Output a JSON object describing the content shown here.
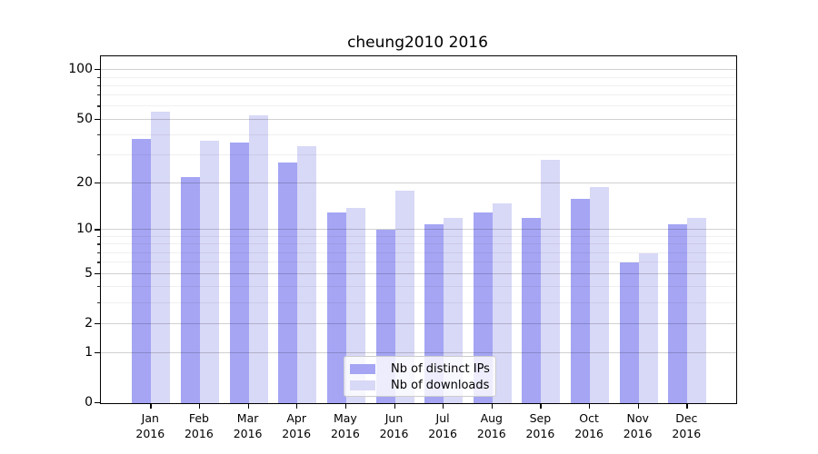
{
  "title": "cheung2010 2016",
  "legend": {
    "items": [
      {
        "label": "Nb of distinct IPs",
        "color": "#a5a5f4"
      },
      {
        "label": "Nb of downloads",
        "color": "#d8d8f7"
      }
    ]
  },
  "axes": {
    "y_tick_labels": [
      "0",
      "1",
      "2",
      "5",
      "10",
      "20",
      "50",
      "100"
    ],
    "x_tick_labels": [
      "Jan 2016",
      "Feb 2016",
      "Mar 2016",
      "Apr 2016",
      "May 2016",
      "Jun 2016",
      "Jul 2016",
      "Aug 2016",
      "Sep 2016",
      "Oct 2016",
      "Nov 2016",
      "Dec 2016"
    ]
  },
  "chart_data": {
    "type": "bar",
    "title": "cheung2010 2016",
    "categories": [
      "Jan 2016",
      "Feb 2016",
      "Mar 2016",
      "Apr 2016",
      "May 2016",
      "Jun 2016",
      "Jul 2016",
      "Aug 2016",
      "Sep 2016",
      "Oct 2016",
      "Nov 2016",
      "Dec 2016"
    ],
    "series": [
      {
        "name": "Nb of distinct IPs",
        "color": "#a5a5f4",
        "values": [
          38,
          22,
          36,
          27,
          13,
          10,
          11,
          13,
          12,
          16,
          6,
          11
        ]
      },
      {
        "name": "Nb of downloads",
        "color": "#d8d8f7",
        "values": [
          56,
          37,
          53,
          34,
          14,
          18,
          12,
          15,
          28,
          19,
          7,
          12
        ]
      }
    ],
    "xlabel": "",
    "ylabel": "",
    "yscale": "log1p",
    "y_ticks": [
      0,
      1,
      2,
      5,
      10,
      20,
      50,
      100
    ],
    "y_minor_ticks": [
      3,
      4,
      6,
      7,
      8,
      9,
      30,
      40,
      60,
      70,
      80,
      90
    ],
    "ylim": [
      0,
      121
    ],
    "grid": "horizontal-major-and-minor",
    "legend_position": "lower center"
  }
}
